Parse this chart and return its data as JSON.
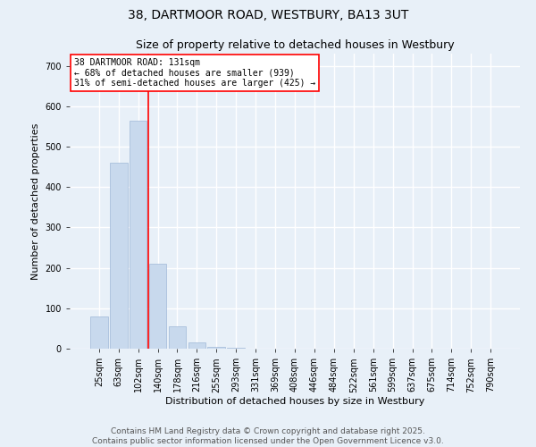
{
  "title1": "38, DARTMOOR ROAD, WESTBURY, BA13 3UT",
  "title2": "Size of property relative to detached houses in Westbury",
  "xlabel": "Distribution of detached houses by size in Westbury",
  "ylabel": "Number of detached properties",
  "categories": [
    "25sqm",
    "63sqm",
    "102sqm",
    "140sqm",
    "178sqm",
    "216sqm",
    "255sqm",
    "293sqm",
    "331sqm",
    "369sqm",
    "408sqm",
    "446sqm",
    "484sqm",
    "522sqm",
    "561sqm",
    "599sqm",
    "637sqm",
    "675sqm",
    "714sqm",
    "752sqm",
    "790sqm"
  ],
  "values": [
    80,
    460,
    565,
    210,
    55,
    15,
    5,
    2,
    0,
    0,
    0,
    0,
    0,
    0,
    0,
    0,
    0,
    0,
    0,
    0,
    0
  ],
  "bar_color": "#c8d9ed",
  "bar_edge_color": "#a0b8d8",
  "vline_x": 2.5,
  "vline_color": "red",
  "annotation_text": "38 DARTMOOR ROAD: 131sqm\n← 68% of detached houses are smaller (939)\n31% of semi-detached houses are larger (425) →",
  "annotation_box_color": "white",
  "annotation_box_edge": "red",
  "ylim": [
    0,
    730
  ],
  "yticks": [
    0,
    100,
    200,
    300,
    400,
    500,
    600,
    700
  ],
  "background_color": "#e8f0f8",
  "footer_text": "Contains HM Land Registry data © Crown copyright and database right 2025.\nContains public sector information licensed under the Open Government Licence v3.0.",
  "grid_color": "white",
  "title_fontsize": 10,
  "subtitle_fontsize": 9,
  "axis_label_fontsize": 8,
  "tick_fontsize": 7,
  "annotation_fontsize": 7,
  "footer_fontsize": 6.5
}
